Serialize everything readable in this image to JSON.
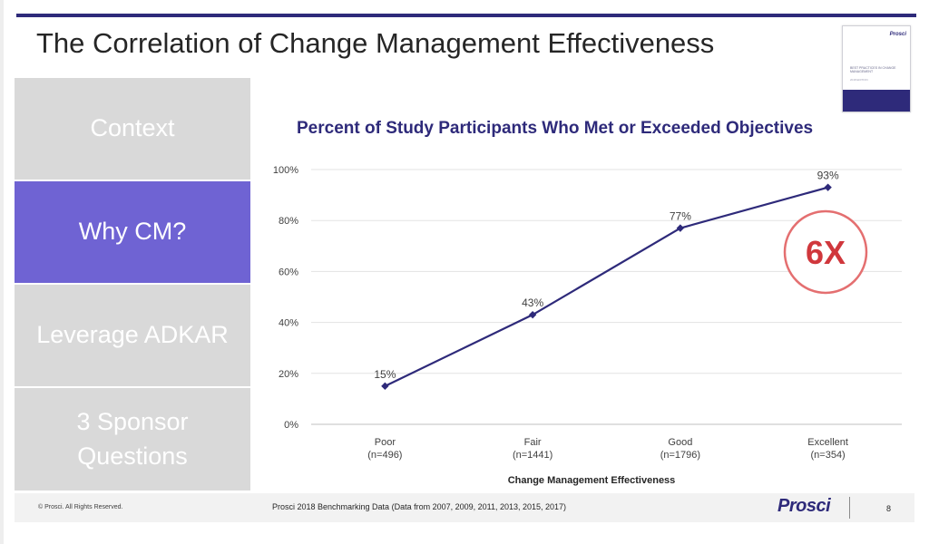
{
  "slide": {
    "title": "The Correlation of Change Management Effectiveness",
    "page_number": "8"
  },
  "thumbnail": {
    "logo_text": "Prosci",
    "heading": "BEST PRACTICES IN CHANGE MANAGEMENT",
    "subheading": "2018 EDITION"
  },
  "sidebar": {
    "items": [
      {
        "label": "Context",
        "active": false
      },
      {
        "label": "Why CM?",
        "active": true
      },
      {
        "label": "Leverage ADKAR",
        "active": false
      },
      {
        "label": "3 Sponsor Questions",
        "active": false
      }
    ]
  },
  "callout": {
    "text": "6X",
    "color": "#d0373c"
  },
  "footer": {
    "copyright": "© Prosci. All Rights Reserved.",
    "source": "Prosci 2018 Benchmarking Data (Data from 2007, 2009, 2011, 2013, 2015, 2017)",
    "brand": "Prosci"
  },
  "colors": {
    "accent": "#2e2a7a",
    "active_nav": "#6f63d3",
    "inactive_nav": "#d9d9d9"
  },
  "chart_data": {
    "type": "line",
    "title": "Percent of Study Participants Who Met or Exceeded Objectives",
    "xlabel": "Change Management Effectiveness",
    "ylabel": "",
    "categories": [
      {
        "label": "Poor",
        "sub": "(n=496)"
      },
      {
        "label": "Fair",
        "sub": "(n=1441)"
      },
      {
        "label": "Good",
        "sub": "(n=1796)"
      },
      {
        "label": "Excellent",
        "sub": "(n=354)"
      }
    ],
    "values": [
      15,
      43,
      77,
      93
    ],
    "data_labels": [
      "15%",
      "43%",
      "77%",
      "93%"
    ],
    "ylim": [
      0,
      100
    ],
    "yticks": [
      {
        "v": 0,
        "label": "0%"
      },
      {
        "v": 20,
        "label": "20%"
      },
      {
        "v": 40,
        "label": "40%"
      },
      {
        "v": 60,
        "label": "60%"
      },
      {
        "v": 80,
        "label": "80%"
      },
      {
        "v": 100,
        "label": "100%"
      }
    ],
    "grid": true,
    "line_color": "#2e2a7a"
  }
}
